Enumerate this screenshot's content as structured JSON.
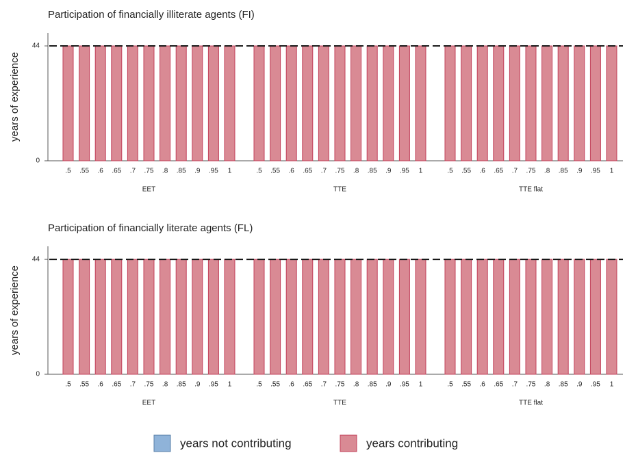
{
  "chart_data": [
    {
      "type": "bar",
      "stacked": true,
      "title": "Participation of financially illiterate agents (FI)",
      "y_label": "years of experience",
      "groups": [
        "EET",
        "TTE",
        "TTE flat"
      ],
      "categories": [
        ".5",
        ".55",
        ".6",
        ".65",
        ".7",
        ".75",
        ".8",
        ".85",
        ".9",
        ".95",
        "1",
        ".5",
        ".55",
        ".6",
        ".65",
        ".7",
        ".75",
        ".8",
        ".85",
        ".9",
        ".95",
        "1",
        ".5",
        ".55",
        ".6",
        ".65",
        ".7",
        ".75",
        ".8",
        ".85",
        ".9",
        ".95",
        "1"
      ],
      "series": [
        {
          "name": "years contributing",
          "color": "#d98a94",
          "values": [
            44,
            44,
            44,
            44,
            44,
            44,
            44,
            44,
            44,
            44,
            44,
            44,
            44,
            44,
            44,
            44,
            44,
            44,
            44,
            44,
            44,
            44,
            44,
            44,
            44,
            44,
            44,
            44,
            44,
            44,
            44,
            44,
            44
          ]
        },
        {
          "name": "years not contributing",
          "color": "#8fb3d9",
          "values": [
            0,
            0,
            0,
            0,
            0,
            0,
            0,
            0,
            0,
            0,
            0,
            0,
            0,
            0,
            0,
            0,
            0,
            0,
            0,
            0,
            0,
            0,
            0,
            0,
            0,
            0,
            0,
            0,
            0,
            0,
            0,
            0,
            0
          ]
        }
      ],
      "reference_line": 44,
      "ylim": [
        0,
        49
      ],
      "yticks": [
        0,
        44
      ]
    },
    {
      "type": "bar",
      "stacked": true,
      "title": "Participation of financially literate agents (FL)",
      "y_label": "years of experience",
      "groups": [
        "EET",
        "TTE",
        "TTE flat"
      ],
      "categories": [
        ".5",
        ".55",
        ".6",
        ".65",
        ".7",
        ".75",
        ".8",
        ".85",
        ".9",
        ".95",
        "1",
        ".5",
        ".55",
        ".6",
        ".65",
        ".7",
        ".75",
        ".8",
        ".85",
        ".9",
        ".95",
        "1",
        ".5",
        ".55",
        ".6",
        ".65",
        ".7",
        ".75",
        ".8",
        ".85",
        ".9",
        ".95",
        "1"
      ],
      "series": [
        {
          "name": "years contributing",
          "color": "#d98a94",
          "values": [
            44,
            44,
            44,
            44,
            44,
            44,
            44,
            44,
            44,
            44,
            44,
            44,
            44,
            44,
            44,
            44,
            44,
            44,
            44,
            44,
            44,
            44,
            44,
            44,
            44,
            44,
            44,
            44,
            44,
            44,
            44,
            44,
            44
          ]
        },
        {
          "name": "years not contributing",
          "color": "#8fb3d9",
          "values": [
            0,
            0,
            0,
            0,
            0,
            0,
            0,
            0,
            0,
            0,
            0,
            0,
            0,
            0,
            0,
            0,
            0,
            0,
            0,
            0,
            0,
            0,
            0,
            0,
            0,
            0,
            0,
            0,
            0,
            0,
            0,
            0,
            0
          ]
        }
      ],
      "reference_line": 44,
      "ylim": [
        0,
        49
      ],
      "yticks": [
        0,
        44
      ]
    }
  ]
}
